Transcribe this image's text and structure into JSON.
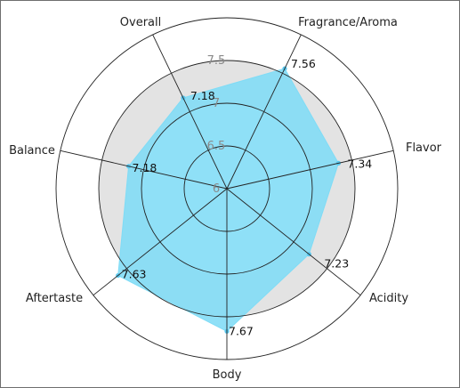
{
  "chart_data": {
    "type": "radar",
    "categories": [
      "Overall",
      "Fragrance/Aroma",
      "Flavor",
      "Acidity",
      "Body",
      "Aftertaste",
      "Balance"
    ],
    "values": [
      7.18,
      7.56,
      7.34,
      7.23,
      7.67,
      7.63,
      7.18
    ],
    "value_labels": [
      "7.18",
      "7.56",
      "7.34",
      "7.23",
      "7.67",
      "7.63",
      "7.18"
    ],
    "rlim": [
      6,
      8
    ],
    "ticks": [
      "6",
      "6.5",
      "7",
      "7.5"
    ],
    "grid": true,
    "colors": {
      "fill": "#7fdcf6",
      "marker": "#5bc8ee",
      "band": "#e3e3e3",
      "grid": "#222222"
    }
  }
}
